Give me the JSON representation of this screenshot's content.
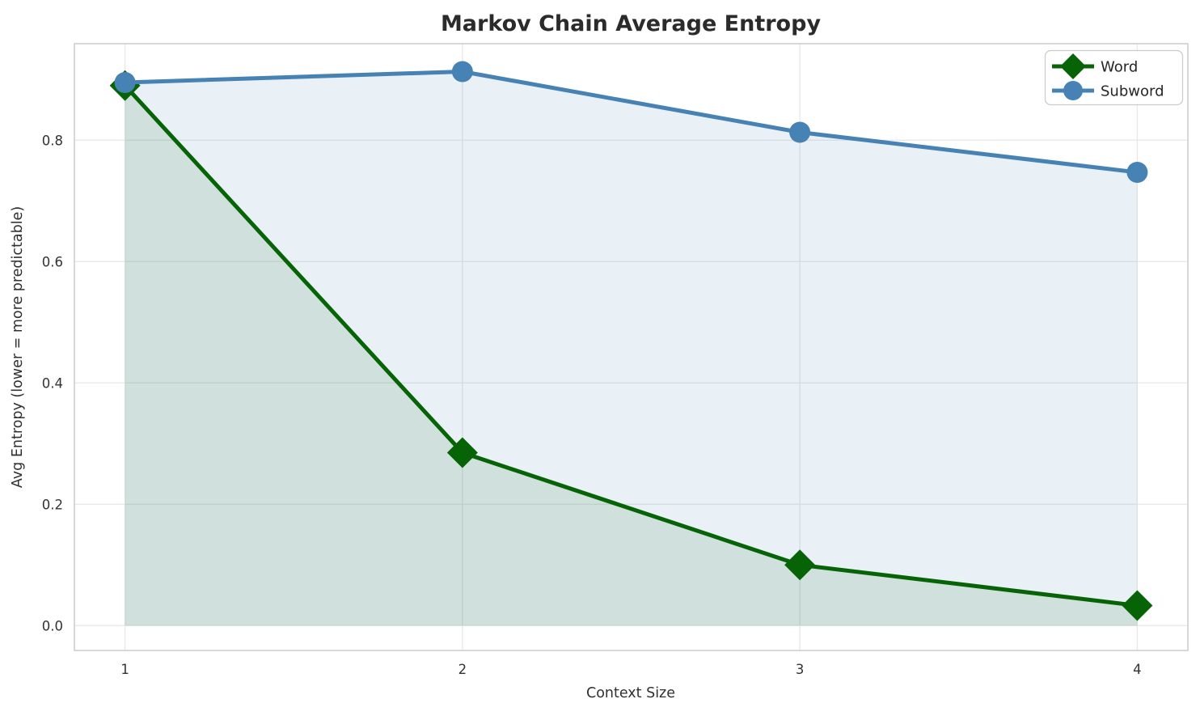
{
  "chart_data": {
    "type": "line",
    "title": "Markov Chain Average Entropy",
    "xlabel": "Context Size",
    "ylabel": "Avg Entropy (lower = more predictable)",
    "x": [
      1,
      2,
      3,
      4
    ],
    "series": [
      {
        "name": "Word",
        "values": [
          0.89,
          0.285,
          0.1,
          0.033
        ],
        "color": "#066406",
        "marker": "diamond",
        "fill_under": true,
        "fill_alpha": 0.11
      },
      {
        "name": "Subword",
        "values": [
          0.895,
          0.913,
          0.813,
          0.747
        ],
        "color": "#4682B4",
        "marker": "circle",
        "fill_under": true,
        "fill_alpha": 0.12
      }
    ],
    "xticks": [
      {
        "v": 1,
        "label": "1"
      },
      {
        "v": 2,
        "label": "2"
      },
      {
        "v": 3,
        "label": "3"
      },
      {
        "v": 4,
        "label": "4"
      }
    ],
    "yticks": [
      {
        "v": 0.0,
        "label": "0.0"
      },
      {
        "v": 0.2,
        "label": "0.2"
      },
      {
        "v": 0.4,
        "label": "0.4"
      },
      {
        "v": 0.6,
        "label": "0.6"
      },
      {
        "v": 0.8,
        "label": "0.8"
      }
    ],
    "xlim": [
      0.85,
      4.15
    ],
    "ylim": [
      -0.041,
      0.959
    ],
    "fill_baseline": 0.0,
    "grid": true,
    "grid_color": "#e7e7e7",
    "spine_color": "#cccccc",
    "legend_position": "upper right",
    "legend": {
      "entries": [
        {
          "label": "Word"
        },
        {
          "label": "Subword"
        }
      ]
    }
  }
}
